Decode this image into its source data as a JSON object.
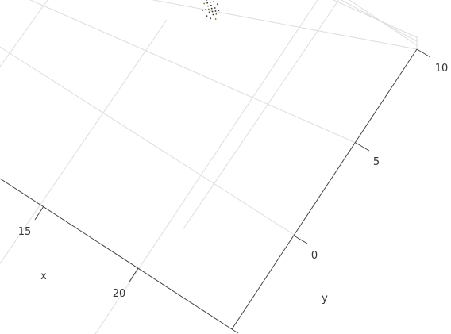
{
  "chart_data": {
    "type": "scatter",
    "projection": "3d",
    "title": "",
    "xlabel": "x",
    "ylabel": "y",
    "x_ticks": [
      "15",
      "20"
    ],
    "y_ticks": [
      "0",
      "5",
      "10"
    ],
    "grid": true,
    "colors": {
      "grid": "#dddddd",
      "axis": "#444444",
      "points": "#333333",
      "accent_points": "#5a7a2a"
    },
    "series": [
      {
        "points": [
          {
            "x": 13.6,
            "y": 7.1
          },
          {
            "x": 13.7,
            "y": 7.0
          },
          {
            "x": 13.8,
            "y": 6.9
          },
          {
            "x": 13.7,
            "y": 6.8
          },
          {
            "x": 13.9,
            "y": 6.9
          },
          {
            "x": 14.0,
            "y": 6.8
          },
          {
            "x": 13.9,
            "y": 6.7
          },
          {
            "x": 14.0,
            "y": 6.6
          },
          {
            "x": 14.1,
            "y": 6.7
          },
          {
            "x": 14.2,
            "y": 6.6
          },
          {
            "x": 14.1,
            "y": 6.5
          },
          {
            "x": 14.3,
            "y": 6.5
          },
          {
            "x": 14.2,
            "y": 6.4
          },
          {
            "x": 14.4,
            "y": 6.4
          },
          {
            "x": 14.3,
            "y": 6.3
          },
          {
            "x": 14.5,
            "y": 6.3
          },
          {
            "x": 13.8,
            "y": 7.2
          },
          {
            "x": 14.0,
            "y": 7.0
          },
          {
            "x": 14.2,
            "y": 6.8
          },
          {
            "x": 14.4,
            "y": 6.6
          },
          {
            "x": 14.6,
            "y": 6.4
          },
          {
            "x": 14.5,
            "y": 6.1
          },
          {
            "x": 14.3,
            "y": 6.1
          },
          {
            "x": 14.1,
            "y": 6.3
          },
          {
            "x": 13.9,
            "y": 6.5
          },
          {
            "x": 14.6,
            "y": 6.6
          },
          {
            "x": 14.4,
            "y": 6.8
          },
          {
            "x": 13.6,
            "y": 6.8
          },
          {
            "x": 14.7,
            "y": 6.2
          },
          {
            "x": 14.0,
            "y": 6.2
          },
          {
            "x": 14.2,
            "y": 7.0
          },
          {
            "x": 14.5,
            "y": 6.5
          }
        ]
      }
    ]
  }
}
